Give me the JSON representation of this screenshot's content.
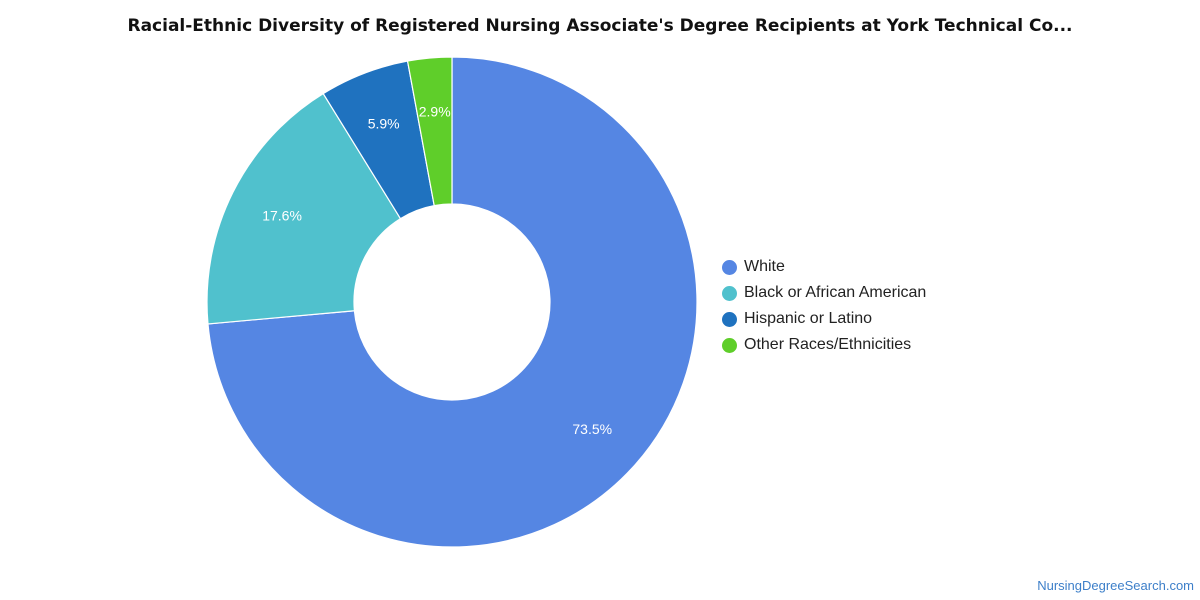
{
  "chart_data": {
    "type": "pie",
    "title": "Racial-Ethnic Diversity of Registered Nursing Associate's Degree Recipients at York Technical Co...",
    "categories": [
      "White",
      "Black or African American",
      "Hispanic or Latino",
      "Other Races/Ethnicities"
    ],
    "values": [
      73.5,
      17.6,
      5.9,
      2.9
    ],
    "labels": [
      "73.5%",
      "17.6%",
      "5.9%",
      "2.9%"
    ],
    "colors": [
      "#5586e3",
      "#50c1cd",
      "#1f72bf",
      "#5fce2a"
    ],
    "donut": true,
    "legend_position": "right"
  },
  "source_credit": "NursingDegreeSearch.com"
}
